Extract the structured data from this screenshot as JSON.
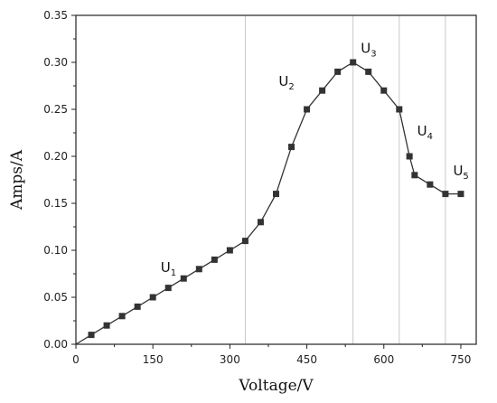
{
  "chart_data": {
    "type": "line",
    "title": "",
    "xlabel": "Voltage/V",
    "ylabel": "Amps/A",
    "xlim": [
      0,
      780
    ],
    "ylim": [
      0,
      0.35
    ],
    "xticks": [
      0,
      150,
      300,
      450,
      600,
      750
    ],
    "yticks": [
      0.0,
      0.05,
      0.1,
      0.15,
      0.2,
      0.25,
      0.3,
      0.35
    ],
    "xtick_labels": [
      "0",
      "150",
      "300",
      "450",
      "600",
      "750"
    ],
    "ytick_labels": [
      "0.00",
      "0.05",
      "0.10",
      "0.15",
      "0.20",
      "0.25",
      "0.30",
      "0.35"
    ],
    "grid": false,
    "series": [
      {
        "marker": "square",
        "color": "#333333",
        "x": [
          0,
          30,
          60,
          90,
          120,
          150,
          180,
          210,
          240,
          270,
          300,
          330,
          360,
          390,
          420,
          450,
          480,
          510,
          540,
          570,
          600,
          630,
          650,
          660,
          690,
          720,
          750
        ],
        "y": [
          0.0,
          0.01,
          0.02,
          0.03,
          0.04,
          0.05,
          0.06,
          0.07,
          0.08,
          0.09,
          0.1,
          0.11,
          0.13,
          0.16,
          0.21,
          0.25,
          0.27,
          0.29,
          0.3,
          0.29,
          0.27,
          0.25,
          0.2,
          0.18,
          0.17,
          0.16,
          0.16
        ]
      }
    ],
    "vlines": [
      330,
      540,
      630,
      720
    ],
    "vline_color": "#c8c8c8",
    "annotations": [
      {
        "base": "U",
        "sub": "1",
        "x": 165,
        "y": 0.077
      },
      {
        "base": "U",
        "sub": "2",
        "x": 395,
        "y": 0.275
      },
      {
        "base": "U",
        "sub": "3",
        "x": 555,
        "y": 0.31
      },
      {
        "base": "U",
        "sub": "4",
        "x": 665,
        "y": 0.222
      },
      {
        "base": "U",
        "sub": "5",
        "x": 735,
        "y": 0.18
      }
    ]
  }
}
